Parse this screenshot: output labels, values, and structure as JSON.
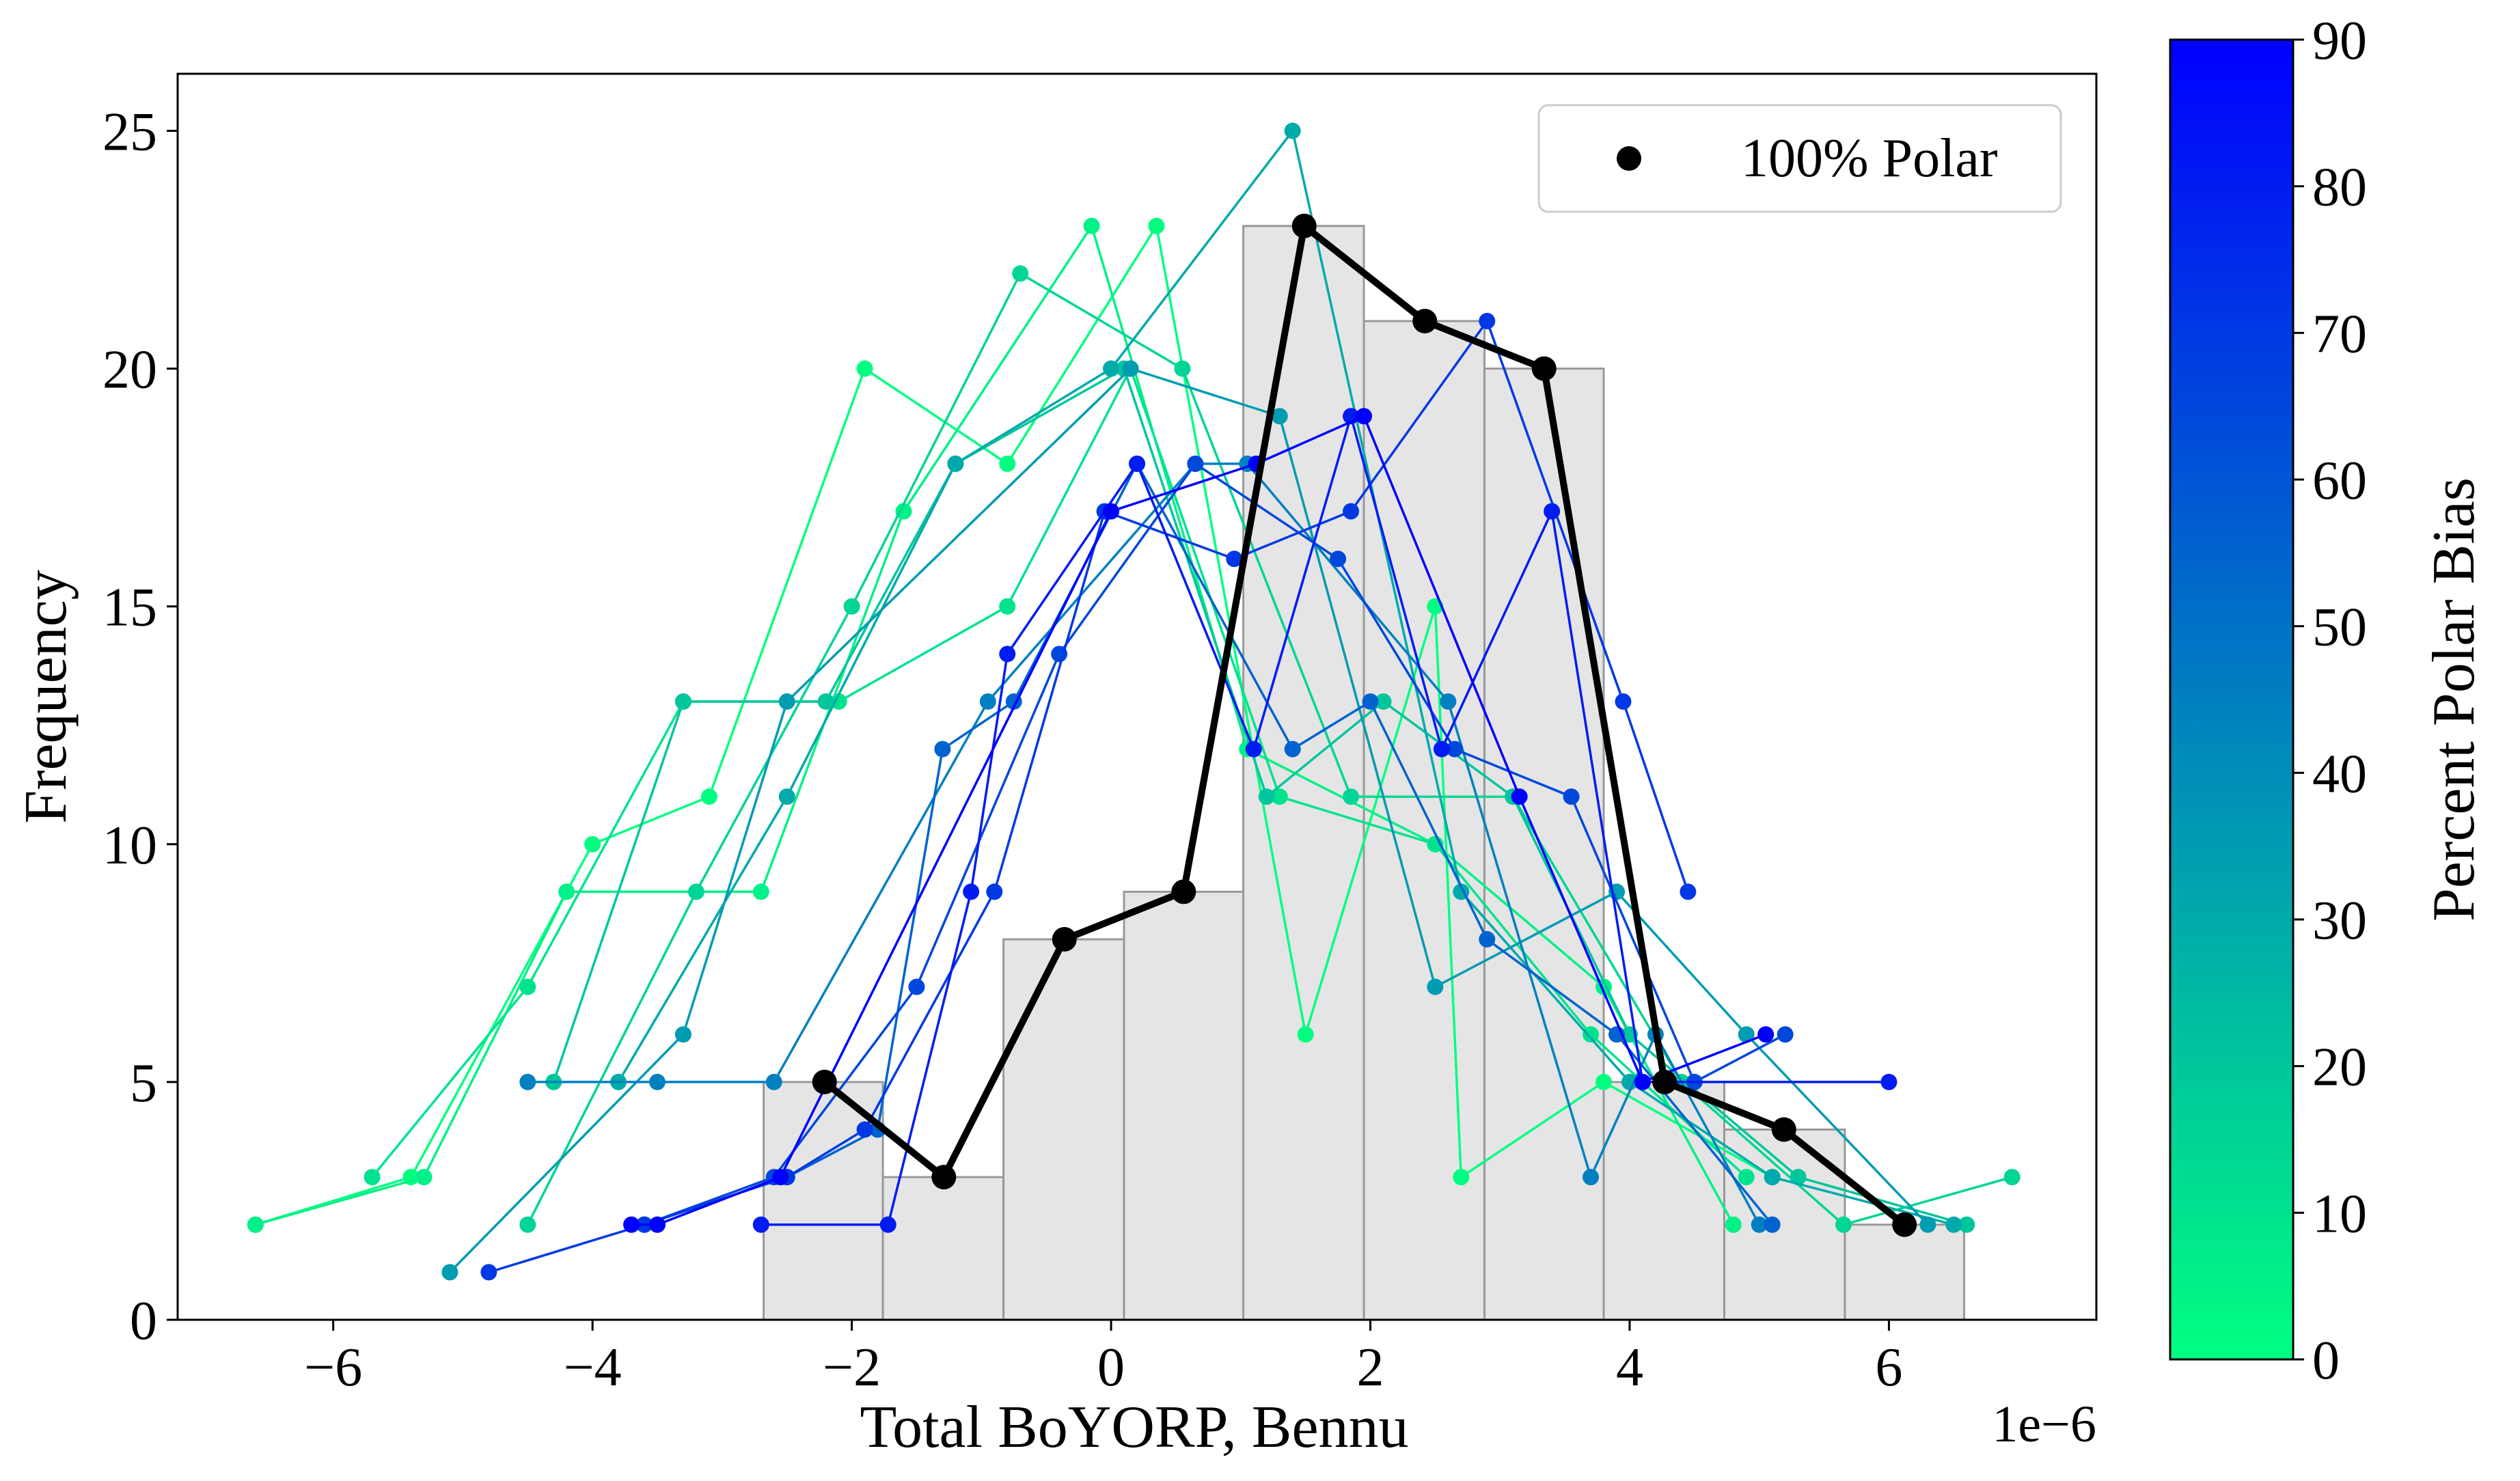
{
  "chart_data": {
    "type": "line",
    "xlabel": "Total BoYORP, Bennu",
    "ylabel": "Frequency",
    "x_offset_label": "1e−6",
    "xlim": [
      -7.2,
      7.6
    ],
    "ylim": [
      0,
      26.2
    ],
    "x_ticks": [
      -6,
      -4,
      -2,
      0,
      2,
      4,
      6
    ],
    "x_tick_labels": [
      "−6",
      "−4",
      "−2",
      "0",
      "2",
      "4",
      "6"
    ],
    "y_ticks": [
      0,
      5,
      10,
      15,
      20,
      25
    ],
    "y_tick_labels": [
      "0",
      "5",
      "10",
      "15",
      "20",
      "25"
    ],
    "grid": false,
    "legend": {
      "position": "top-right",
      "entries": [
        "100% Polar"
      ]
    },
    "colorbar": {
      "label": "Percent Polar Bias",
      "min": 0,
      "max": 90,
      "ticks": [
        0,
        10,
        20,
        30,
        40,
        50,
        60,
        70,
        80,
        90
      ],
      "tick_labels": [
        "0",
        "10",
        "20",
        "30",
        "40",
        "50",
        "60",
        "70",
        "80",
        "90"
      ],
      "color_low": "#00ff80",
      "color_high": "#0000ff"
    },
    "histogram": {
      "color": "#e5e5e5",
      "edge_color": "#999999",
      "bin_edges": [
        -2.68,
        -1.76,
        -0.83,
        0.1,
        1.02,
        1.95,
        2.88,
        3.8,
        4.73,
        5.66,
        6.58
      ],
      "counts": [
        5,
        3,
        8,
        9,
        23,
        21,
        20,
        5,
        4,
        2
      ]
    },
    "polar_series": {
      "name": "100% Polar",
      "color": "#000000",
      "x": [
        -2.21,
        -1.29,
        -0.36,
        0.56,
        1.49,
        2.42,
        3.34,
        4.27,
        5.19,
        6.12
      ],
      "y": [
        5,
        3,
        8,
        9,
        23,
        21,
        20,
        5,
        4,
        2
      ]
    },
    "series": [
      {
        "bias": 0,
        "x": [
          -6.6,
          -5.4,
          -4.0,
          -3.1,
          -1.9,
          -0.8,
          0.35,
          1.5,
          2.5,
          2.7,
          3.8,
          5.1
        ],
        "y": [
          2,
          3,
          10,
          11,
          20,
          18,
          23,
          6,
          15,
          3,
          5,
          3
        ]
      },
      {
        "bias": 5,
        "x": [
          -6.6,
          -5.3,
          -4.2,
          -2.7,
          -1.6,
          -0.15,
          1.05,
          2.5,
          3.8,
          4.8
        ],
        "y": [
          2,
          3,
          9,
          9,
          17,
          23,
          12,
          10,
          7,
          2
        ]
      },
      {
        "bias": 10,
        "x": [
          -5.7,
          -4.5,
          -3.3,
          -2.1,
          -0.8,
          0.15,
          1.3,
          2.5,
          3.7,
          4.9
        ],
        "y": [
          3,
          7,
          13,
          13,
          15,
          20,
          11,
          10,
          6,
          3
        ]
      },
      {
        "bias": 15,
        "x": [
          -4.5,
          -3.2,
          -2.0,
          -0.7,
          0.55,
          1.85,
          3.1,
          4.4,
          5.65,
          6.95
        ],
        "y": [
          2,
          9,
          15,
          22,
          20,
          11,
          11,
          5,
          2,
          3
        ]
      },
      {
        "bias": 20,
        "x": [
          -4.3,
          -3.3,
          -2.2,
          -1.2,
          0.1,
          1.2,
          2.1,
          3.1,
          4.0,
          5.3,
          6.6
        ],
        "y": [
          5,
          13,
          13,
          18,
          20,
          11,
          13,
          11,
          6,
          3,
          2
        ]
      },
      {
        "bias": 30,
        "x": [
          -3.8,
          -2.5,
          -1.2,
          0.0,
          1.4,
          2.7,
          4.0,
          5.1,
          6.5
        ],
        "y": [
          5,
          11,
          18,
          20,
          25,
          9,
          5,
          3,
          2
        ]
      },
      {
        "bias": 35,
        "x": [
          -5.1,
          -3.3,
          -2.5,
          0.15,
          1.3,
          2.5,
          3.9,
          4.9,
          6.3
        ],
        "y": [
          1,
          6,
          13,
          20,
          19,
          7,
          9,
          6,
          2
        ]
      },
      {
        "bias": 45,
        "x": [
          -4.5,
          -3.5,
          -2.6,
          -0.95,
          0.65,
          1.05,
          2.6,
          3.7,
          4.2,
          5.0
        ],
        "y": [
          5,
          5,
          5,
          13,
          18,
          18,
          13,
          3,
          6,
          2
        ]
      },
      {
        "bias": 55,
        "x": [
          -2.5,
          -1.8,
          -1.3,
          -0.75,
          0.2,
          1.4,
          2.0,
          2.9,
          3.9,
          5.1
        ],
        "y": [
          3,
          4,
          12,
          13,
          18,
          12,
          13,
          8,
          6,
          2
        ]
      },
      {
        "bias": 65,
        "x": [
          -3.6,
          -2.6,
          -1.5,
          -0.4,
          0.65,
          1.75,
          2.65,
          3.55,
          4.5,
          5.2
        ],
        "y": [
          2,
          3,
          7,
          14,
          18,
          16,
          12,
          11,
          5,
          6
        ]
      },
      {
        "bias": 70,
        "x": [
          -4.8,
          -3.6,
          -2.5,
          -1.9,
          -0.9,
          -0.05,
          0.95,
          1.85,
          2.9,
          3.95,
          4.45
        ],
        "y": [
          1,
          2,
          3,
          4,
          9,
          17,
          16,
          17,
          21,
          13,
          9
        ]
      },
      {
        "bias": 80,
        "x": [
          -2.7,
          -1.72,
          -1.08,
          -0.8,
          0.2,
          1.1,
          1.85,
          2.55,
          3.4,
          4.1,
          6.0
        ],
        "y": [
          2,
          2,
          9,
          14,
          18,
          12,
          19,
          12,
          17,
          5,
          5
        ]
      },
      {
        "bias": 90,
        "x": [
          -3.7,
          -3.5,
          -2.55,
          -0.0,
          1.12,
          1.95,
          3.15,
          4.1,
          5.05
        ],
        "y": [
          2,
          2,
          3,
          17,
          18,
          19,
          11,
          5,
          6
        ]
      }
    ]
  }
}
